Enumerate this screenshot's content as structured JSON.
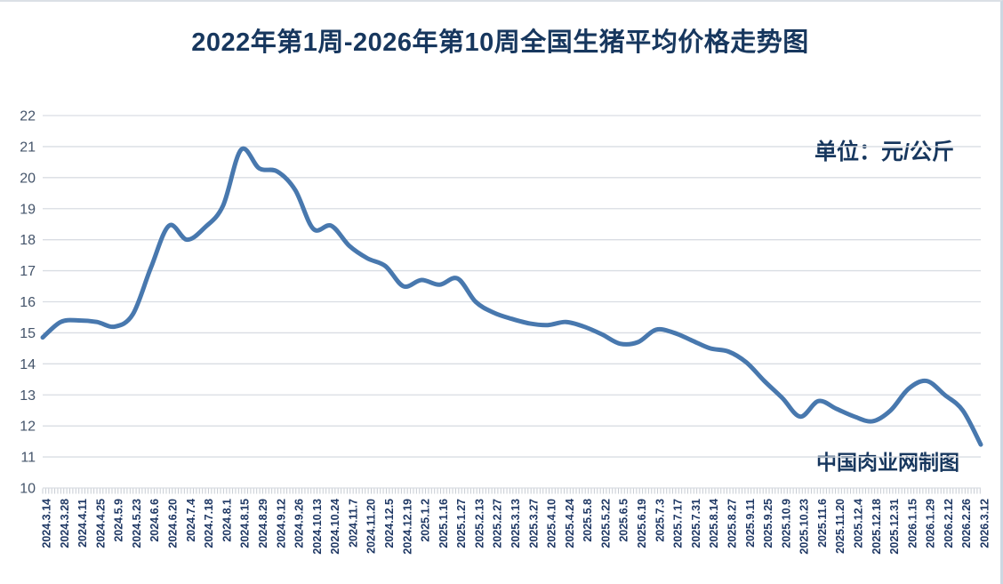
{
  "page": {
    "title": "2022年第1周-2026年第10周全国生猪平均价格走势图",
    "unit_label": "单位：元/公斤",
    "credit": "中国肉业网制图"
  },
  "colors": {
    "title_text": "#17375e",
    "line": "#4878ae",
    "gridline": "#d9dde3",
    "axis_tick": "#c7ccd3",
    "y_axis_label": "#44546a",
    "x_axis_label": "#1f3864",
    "border": "#ccd8e2"
  },
  "chart_data": {
    "type": "line",
    "title": "2022年第1周-2026年第10周全国生猪平均价格走势图",
    "unit_label": "单位：元/公斤",
    "annotations": [
      "中国肉业网制图"
    ],
    "xlabel": "",
    "ylabel": "",
    "ylim": [
      10,
      22
    ],
    "yticks": [
      10,
      11,
      12,
      13,
      14,
      15,
      16,
      17,
      18,
      19,
      20,
      21,
      22
    ],
    "grid": true,
    "legend": "none",
    "smoothed": true,
    "categories": [
      "2024.3.14",
      "2024.3.28",
      "2024.4.11",
      "2024.4.25",
      "2024.5.9",
      "2024.5.23",
      "2024.6.6",
      "2024.6.20",
      "2024.7.4",
      "2024.7.18",
      "2024.8.1",
      "2024.8.15",
      "2024.8.29",
      "2024.9.12",
      "2024.9.26",
      "2024.10.13",
      "2024.10.24",
      "2024.11.7",
      "2024.11.20",
      "2024.12.5",
      "2024.12.19",
      "2025.1.2",
      "2025.1.16",
      "2025.1.27",
      "2025.2.13",
      "2025.2.27",
      "2025.3.13",
      "2025.3.27",
      "2025.4.10",
      "2025.4.24",
      "2025.5.8",
      "2025.5.22",
      "2025.6.5",
      "2025.6.19",
      "2025.7.3",
      "2025.7.17",
      "2025.7.31",
      "2025.8.14",
      "2025.8.27",
      "2025.9.11",
      "2025.9.25",
      "2025.10.9",
      "2025.10.23",
      "2025.11.6",
      "2025.11.20",
      "2025.12.4",
      "2025.12.18",
      "2025.12.31",
      "2026.1.15",
      "2026.1.29",
      "2026.2.12",
      "2026.2.26",
      "2026.3.12"
    ],
    "values": [
      14.85,
      15.35,
      15.4,
      15.35,
      15.2,
      15.6,
      17.1,
      18.45,
      18.0,
      18.4,
      19.1,
      20.9,
      20.3,
      20.2,
      19.6,
      18.35,
      18.45,
      17.8,
      17.4,
      17.15,
      16.5,
      16.7,
      16.55,
      16.75,
      16.0,
      15.65,
      15.45,
      15.3,
      15.25,
      15.35,
      15.2,
      14.95,
      14.65,
      14.7,
      15.1,
      15.0,
      14.75,
      14.5,
      14.4,
      14.05,
      13.45,
      12.9,
      12.3,
      12.8,
      12.55,
      12.3,
      12.15,
      12.5,
      13.2,
      13.45,
      13.0,
      12.5,
      11.4
    ]
  }
}
